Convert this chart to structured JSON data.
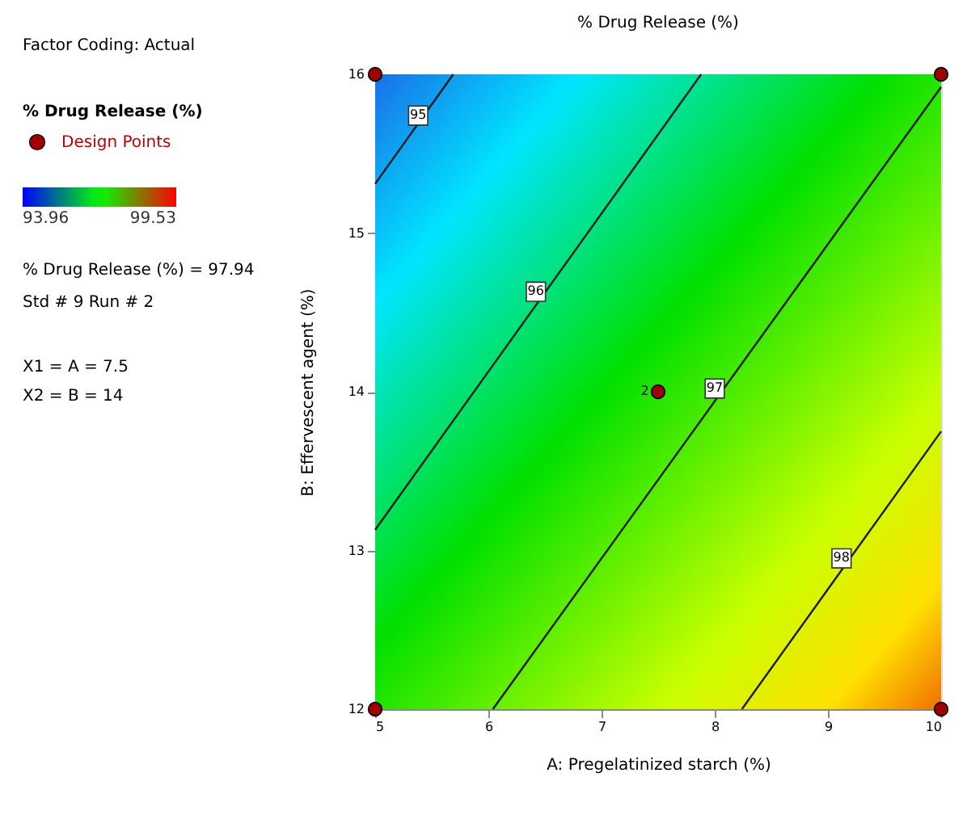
{
  "chart_data": {
    "type": "line",
    "title": "% Drug Release (%)",
    "xlabel": "A: Pregelatinized starch (%)",
    "ylabel": "B: Effervescent agent (%)",
    "legend_title": "% Drug Release (%)",
    "xlim": [
      5,
      10
    ],
    "xticks": [
      5,
      6,
      7,
      8,
      9,
      10
    ],
    "ylim": [
      12,
      16
    ],
    "yticks": [
      12,
      13,
      14,
      15,
      16
    ],
    "clim": [
      93.96,
      99.53
    ],
    "cticks": [
      93.96,
      99.53
    ],
    "legend": "left",
    "series": [
      {
        "color": "#1a1a1a",
        "x": [
          5,
          5.69
        ],
        "values": [
          15.31,
          16
        ]
      },
      {
        "color": "#1a1a1a",
        "x": [
          5,
          7.88
        ],
        "values": [
          13.13,
          16
        ]
      },
      {
        "color": "#1a1a1a",
        "x": [
          6.04,
          10
        ],
        "values": [
          12,
          15.92
        ]
      },
      {
        "color": "#1a1a1a",
        "x": [
          8.24,
          10
        ],
        "values": [
          12,
          13.75
        ]
      },
      {
        "type": "scatter",
        "name": "Design Points",
        "color": "#a00000",
        "x": [
          5,
          5,
          10,
          10,
          7.5
        ],
        "values": [
          12,
          16,
          12,
          16,
          14
        ]
      }
    ],
    "annotations": [
      "Factor Coding: Actual",
      "% Drug Release (%) = 97.94",
      "Std # 9 Run # 2",
      "X1 = A = 7.5",
      "X2 = B = 14",
      {
        "text": "95",
        "x": 5.38,
        "y": 15.74
      },
      {
        "text": "96",
        "x": 6.42,
        "y": 14.63
      },
      {
        "text": "97",
        "x": 8.0,
        "y": 14.02
      },
      {
        "text": "98",
        "x": 9.12,
        "y": 12.95
      },
      {
        "text": "2",
        "x": 7.42,
        "y": 14
      }
    ]
  }
}
